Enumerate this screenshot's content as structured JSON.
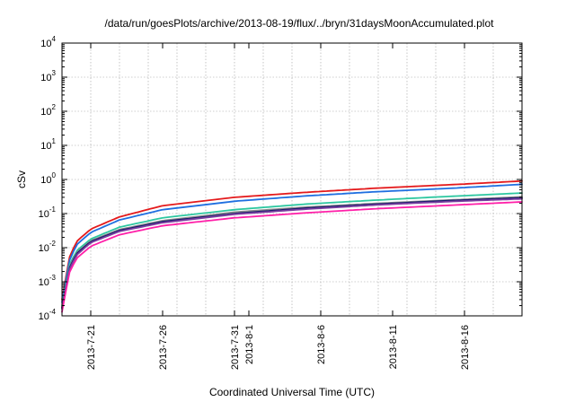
{
  "chart_data": {
    "type": "line",
    "title": "/data/run/goesPlots/archive/2013-08-19/flux/../bryn/31daysMoonAccumulated.plot",
    "xlabel": "Coordinated Universal Time (UTC)",
    "ylabel": "cSv",
    "y_scale": "log",
    "ylim": [
      0.0001,
      10000
    ],
    "xlim": [
      "2013-07-19",
      "2013-08-20"
    ],
    "grid": true,
    "legend": "none",
    "x_ticks": [
      "2013-7-21",
      "2013-7-26",
      "2013-7-31",
      "2013-8-1",
      "2013-8-6",
      "2013-8-11",
      "2013-8-16"
    ],
    "y_ticks": [
      {
        "value": 0.0001,
        "base": "10",
        "exp": "-4"
      },
      {
        "value": 0.001,
        "base": "10",
        "exp": "-3"
      },
      {
        "value": 0.01,
        "base": "10",
        "exp": "-2"
      },
      {
        "value": 0.1,
        "base": "10",
        "exp": "-1"
      },
      {
        "value": 1,
        "base": "10",
        "exp": "0"
      },
      {
        "value": 10,
        "base": "10",
        "exp": "1"
      },
      {
        "value": 100,
        "base": "10",
        "exp": "2"
      },
      {
        "value": 1000,
        "base": "10",
        "exp": "3"
      },
      {
        "value": 10000,
        "base": "10",
        "exp": "4"
      }
    ],
    "x": [
      "2013-07-19",
      "2013-07-19T12:00",
      "2013-07-20",
      "2013-07-21",
      "2013-07-23",
      "2013-07-26",
      "2013-07-31",
      "2013-08-05",
      "2013-08-10",
      "2013-08-15",
      "2013-08-20"
    ],
    "series": [
      {
        "color": "#e41a1c",
        "values": [
          0.0003,
          0.005,
          0.015,
          0.035,
          0.08,
          0.17,
          0.3,
          0.42,
          0.56,
          0.7,
          0.9
        ]
      },
      {
        "color": "#1f6fe0",
        "values": [
          0.00025,
          0.004,
          0.012,
          0.028,
          0.065,
          0.13,
          0.23,
          0.33,
          0.44,
          0.55,
          0.72
        ]
      },
      {
        "color": "#2dc7a0",
        "values": [
          0.0002,
          0.003,
          0.008,
          0.018,
          0.04,
          0.075,
          0.13,
          0.19,
          0.25,
          0.32,
          0.4
        ]
      },
      {
        "color": "#8a8a8a",
        "values": [
          0.00018,
          0.0026,
          0.007,
          0.016,
          0.034,
          0.062,
          0.11,
          0.155,
          0.2,
          0.25,
          0.31
        ]
      },
      {
        "color": "#1a1a6e",
        "values": [
          0.00017,
          0.0024,
          0.0066,
          0.015,
          0.032,
          0.058,
          0.1,
          0.145,
          0.19,
          0.24,
          0.29
        ]
      },
      {
        "color": "#7b3fa0",
        "values": [
          0.00016,
          0.0022,
          0.006,
          0.014,
          0.03,
          0.054,
          0.095,
          0.135,
          0.18,
          0.225,
          0.27
        ]
      },
      {
        "color": "#ff1fa8",
        "values": [
          0.00013,
          0.0018,
          0.0048,
          0.011,
          0.024,
          0.044,
          0.075,
          0.105,
          0.14,
          0.175,
          0.22
        ]
      }
    ]
  }
}
